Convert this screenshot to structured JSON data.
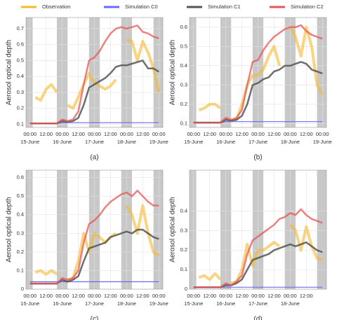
{
  "chart_data": [
    {
      "type": "line",
      "label": "(a)",
      "ylabel": "Aerosol optical depth",
      "x": [
        0,
        4,
        8,
        12,
        16,
        20,
        24,
        28,
        32,
        36,
        40,
        44,
        48,
        52,
        56,
        60,
        64,
        68,
        72,
        76,
        80,
        84,
        88,
        92,
        96
      ],
      "xlim": [
        -3,
        99
      ],
      "ylim": [
        0.08,
        0.77
      ],
      "xticks": [
        {
          "value": 0,
          "label": "00:00"
        },
        {
          "value": 12,
          "label": "12:00"
        },
        {
          "value": 24,
          "label": "00:00"
        },
        {
          "value": 36,
          "label": "12:00"
        },
        {
          "value": 48,
          "label": "00:00"
        },
        {
          "value": 60,
          "label": "12:00"
        },
        {
          "value": 72,
          "label": "00:00"
        },
        {
          "value": 84,
          "label": "12:00"
        },
        {
          "value": 96,
          "label": "00:00"
        }
      ],
      "x_date_labels": [
        {
          "value": 0,
          "label": "15-June"
        },
        {
          "value": 24,
          "label": "16-June"
        },
        {
          "value": 48,
          "label": "17-June"
        },
        {
          "value": 72,
          "label": "18-June"
        },
        {
          "value": 96,
          "label": "19-June"
        }
      ],
      "yticks": [
        0.1,
        0.2,
        0.3,
        0.4,
        0.5,
        0.6,
        0.7
      ],
      "shaded": [
        [
          -3,
          2
        ],
        [
          20,
          28
        ],
        [
          44,
          52
        ],
        [
          68,
          76
        ],
        [
          92,
          99
        ]
      ],
      "grid": true,
      "series": [
        {
          "name": "Observation",
          "color": "#f5b830",
          "values": [
            null,
            0.27,
            0.25,
            0.32,
            0.35,
            0.3,
            null,
            0.22,
            0.2,
            0.27,
            0.35,
            0.42,
            0.36,
            0.34,
            0.32,
            0.34,
            0.38,
            null,
            0.63,
            0.62,
            0.5,
            0.62,
            0.55,
            0.45,
            0.3
          ]
        },
        {
          "name": "Simulation C0",
          "color": "#6b6bf5",
          "values": [
            0.105,
            0.105,
            0.105,
            0.105,
            0.105,
            0.105,
            0.11,
            0.11,
            0.11,
            0.11,
            0.11,
            0.11,
            0.11,
            0.11,
            0.11,
            0.11,
            0.11,
            0.11,
            0.11,
            0.11,
            0.11,
            0.11,
            0.11,
            0.11,
            0.11
          ]
        },
        {
          "name": "Simulation C1",
          "color": "#555555",
          "values": [
            0.105,
            0.105,
            0.105,
            0.105,
            0.105,
            0.105,
            0.12,
            0.115,
            0.12,
            0.14,
            0.22,
            0.33,
            0.35,
            0.37,
            0.39,
            0.42,
            0.46,
            0.47,
            0.47,
            0.48,
            0.49,
            0.5,
            0.45,
            0.45,
            0.43
          ]
        },
        {
          "name": "Simulation C2",
          "color": "#e85555",
          "values": [
            0.105,
            0.105,
            0.105,
            0.105,
            0.105,
            0.105,
            0.13,
            0.12,
            0.13,
            0.18,
            0.35,
            0.5,
            0.52,
            0.56,
            0.62,
            0.67,
            0.7,
            0.71,
            0.7,
            0.71,
            0.72,
            0.68,
            0.67,
            0.65,
            0.64
          ]
        }
      ]
    },
    {
      "type": "line",
      "label": "(b)",
      "ylabel": "Aerosol optical depth",
      "x": [
        0,
        4,
        8,
        12,
        16,
        20,
        24,
        28,
        32,
        36,
        40,
        44,
        48,
        52,
        56,
        60,
        64,
        68,
        72,
        76,
        80,
        84,
        88,
        92,
        96
      ],
      "xlim": [
        -3,
        99
      ],
      "ylim": [
        0.08,
        0.65
      ],
      "xticks": [
        {
          "value": 0,
          "label": "00:00"
        },
        {
          "value": 12,
          "label": "12:00"
        },
        {
          "value": 24,
          "label": "00:00"
        },
        {
          "value": 36,
          "label": "12:00"
        },
        {
          "value": 48,
          "label": "00:00"
        },
        {
          "value": 60,
          "label": "12:00"
        },
        {
          "value": 72,
          "label": "00:00"
        },
        {
          "value": 84,
          "label": "12:00"
        },
        {
          "value": 96,
          "label": "00:00"
        }
      ],
      "x_date_labels": [
        {
          "value": 0,
          "label": "15-June"
        },
        {
          "value": 24,
          "label": "16-June"
        },
        {
          "value": 48,
          "label": "17-June"
        },
        {
          "value": 72,
          "label": "18-June"
        },
        {
          "value": 96,
          "label": "19-June"
        }
      ],
      "yticks": [
        0.1,
        0.2,
        0.3,
        0.4,
        0.5,
        0.6
      ],
      "shaded": [
        [
          -3,
          2
        ],
        [
          20,
          28
        ],
        [
          44,
          52
        ],
        [
          68,
          76
        ],
        [
          92,
          99
        ]
      ],
      "grid": true,
      "series": [
        {
          "color": "#f5b830",
          "values": [
            null,
            0.17,
            0.18,
            0.2,
            0.2,
            0.18,
            null,
            0.12,
            0.12,
            0.2,
            0.3,
            0.35,
            0.35,
            0.38,
            0.45,
            0.5,
            0.4,
            null,
            0.6,
            0.55,
            0.45,
            0.6,
            0.5,
            0.3,
            0.25
          ]
        },
        {
          "color": "#6b6bf5",
          "values": [
            0.105,
            0.105,
            0.105,
            0.105,
            0.105,
            0.105,
            0.11,
            0.11,
            0.11,
            0.11,
            0.11,
            0.11,
            0.11,
            0.11,
            0.11,
            0.11,
            0.11,
            0.11,
            0.11,
            0.11,
            0.11,
            0.11,
            0.11,
            0.11,
            0.11
          ]
        },
        {
          "color": "#555555",
          "values": [
            0.105,
            0.105,
            0.105,
            0.105,
            0.105,
            0.105,
            0.12,
            0.115,
            0.12,
            0.14,
            0.2,
            0.3,
            0.31,
            0.33,
            0.34,
            0.37,
            0.38,
            0.4,
            0.4,
            0.41,
            0.42,
            0.41,
            0.38,
            0.37,
            0.36
          ]
        },
        {
          "color": "#e85555",
          "values": [
            0.105,
            0.105,
            0.105,
            0.105,
            0.105,
            0.105,
            0.13,
            0.12,
            0.13,
            0.17,
            0.3,
            0.42,
            0.43,
            0.48,
            0.52,
            0.55,
            0.57,
            0.59,
            0.6,
            0.6,
            0.61,
            0.58,
            0.56,
            0.55,
            0.54
          ]
        }
      ]
    },
    {
      "type": "line",
      "label": "(c)",
      "ylabel": "Aerosol optical depth",
      "x": [
        0,
        4,
        8,
        12,
        16,
        20,
        24,
        28,
        32,
        36,
        40,
        44,
        48,
        52,
        56,
        60,
        64,
        68,
        72,
        76,
        80,
        84,
        88,
        92,
        96
      ],
      "xlim": [
        -3,
        99
      ],
      "ylim": [
        0,
        0.64
      ],
      "xticks": [
        {
          "value": 0,
          "label": "00:00"
        },
        {
          "value": 12,
          "label": "12:00"
        },
        {
          "value": 24,
          "label": "00:00"
        },
        {
          "value": 36,
          "label": "12:00"
        },
        {
          "value": 48,
          "label": "00:00"
        },
        {
          "value": 60,
          "label": "12:00"
        },
        {
          "value": 72,
          "label": "00:00"
        },
        {
          "value": 84,
          "label": "12:00"
        },
        {
          "value": 96,
          "label": "00:00"
        }
      ],
      "x_date_labels": [
        {
          "value": 0,
          "label": "15-June"
        },
        {
          "value": 24,
          "label": "16-June"
        },
        {
          "value": 48,
          "label": "17-June"
        },
        {
          "value": 72,
          "label": "18-June"
        },
        {
          "value": 96,
          "label": "19-June"
        }
      ],
      "yticks": [
        0,
        0.1,
        0.2,
        0.3,
        0.4,
        0.5,
        0.6
      ],
      "shaded": [
        [
          -3,
          2
        ],
        [
          20,
          28
        ],
        [
          44,
          52
        ],
        [
          68,
          76
        ],
        [
          92,
          99
        ]
      ],
      "grid": true,
      "series": [
        {
          "color": "#f5b830",
          "values": [
            null,
            0.09,
            0.1,
            0.08,
            0.1,
            0.08,
            null,
            0.05,
            0.06,
            0.15,
            0.3,
            0.2,
            0.3,
            0.28,
            0.25,
            0.28,
            0.3,
            null,
            0.45,
            0.4,
            0.3,
            0.45,
            0.3,
            0.2,
            0.18
          ]
        },
        {
          "color": "#6b6bf5",
          "values": [
            0.04,
            0.04,
            0.04,
            0.04,
            0.04,
            0.04,
            0.04,
            0.04,
            0.04,
            0.04,
            0.04,
            0.04,
            0.04,
            0.04,
            0.04,
            0.04,
            0.04,
            0.04,
            0.04,
            0.04,
            0.04,
            0.04,
            0.04,
            0.04,
            0.04
          ]
        },
        {
          "color": "#555555",
          "values": [
            0.03,
            0.03,
            0.03,
            0.03,
            0.03,
            0.03,
            0.05,
            0.04,
            0.05,
            0.07,
            0.15,
            0.22,
            0.23,
            0.24,
            0.25,
            0.28,
            0.29,
            0.3,
            0.31,
            0.3,
            0.32,
            0.32,
            0.3,
            0.28,
            0.27
          ]
        },
        {
          "color": "#e85555",
          "values": [
            0.03,
            0.03,
            0.03,
            0.03,
            0.03,
            0.03,
            0.06,
            0.05,
            0.06,
            0.1,
            0.25,
            0.35,
            0.37,
            0.4,
            0.44,
            0.47,
            0.49,
            0.51,
            0.52,
            0.5,
            0.53,
            0.5,
            0.47,
            0.45,
            0.45
          ]
        }
      ]
    },
    {
      "type": "line",
      "label": "(d)",
      "ylabel": "Aerosol optical depth",
      "x": [
        0,
        4,
        8,
        12,
        16,
        20,
        24,
        28,
        32,
        36,
        40,
        44,
        48,
        52,
        56,
        60,
        64,
        68,
        72,
        76,
        80,
        84,
        88,
        92,
        96
      ],
      "xlim": [
        -3,
        99
      ],
      "ylim": [
        0,
        0.61
      ],
      "xticks": [
        {
          "value": 0,
          "label": "00:00"
        },
        {
          "value": 12,
          "label": "12:00"
        },
        {
          "value": 24,
          "label": "00:00"
        },
        {
          "value": 36,
          "label": "12:00"
        },
        {
          "value": 48,
          "label": "00:00"
        },
        {
          "value": 60,
          "label": "12:00"
        },
        {
          "value": 72,
          "label": "00:00"
        },
        {
          "value": 84,
          "label": "12:00"
        }
      ],
      "x_date_labels": [
        {
          "value": 0,
          "label": "15-June"
        },
        {
          "value": 24,
          "label": "16-June"
        },
        {
          "value": 48,
          "label": "17-June"
        },
        {
          "value": 72,
          "label": "18-June"
        }
      ],
      "yticks": [
        0,
        0.1,
        0.2,
        0.3,
        0.4
      ],
      "shaded": [
        [
          -3,
          2
        ],
        [
          20,
          28
        ],
        [
          44,
          52
        ],
        [
          68,
          76
        ],
        [
          92,
          99
        ]
      ],
      "grid": true,
      "series": [
        {
          "color": "#f5b830",
          "values": [
            null,
            0.06,
            0.07,
            0.05,
            0.08,
            0.05,
            null,
            0.03,
            0.04,
            0.1,
            0.23,
            0.12,
            0.2,
            0.2,
            0.22,
            0.24,
            0.22,
            null,
            0.33,
            0.3,
            0.2,
            0.32,
            0.22,
            0.16,
            0.15
          ]
        },
        {
          "color": "#6b6bf5",
          "values": [
            0.01,
            0.01,
            0.01,
            0.01,
            0.01,
            0.01,
            0.01,
            0.01,
            0.01,
            0.01,
            0.01,
            0.01,
            0.01,
            0.01,
            0.01,
            0.01,
            0.01,
            0.01,
            0.01,
            0.01,
            0.01,
            0.01,
            0.01,
            0.01,
            0.01
          ]
        },
        {
          "color": "#555555",
          "values": [
            0.01,
            0.01,
            0.01,
            0.01,
            0.01,
            0.01,
            0.02,
            0.02,
            0.03,
            0.05,
            0.1,
            0.15,
            0.16,
            0.17,
            0.18,
            0.2,
            0.21,
            0.22,
            0.23,
            0.22,
            0.23,
            0.24,
            0.22,
            0.2,
            0.19
          ]
        },
        {
          "color": "#e85555",
          "values": [
            0.01,
            0.01,
            0.01,
            0.01,
            0.01,
            0.01,
            0.03,
            0.02,
            0.04,
            0.07,
            0.18,
            0.25,
            0.27,
            0.29,
            0.31,
            0.33,
            0.36,
            0.37,
            0.39,
            0.38,
            0.41,
            0.38,
            0.36,
            0.35,
            0.34
          ]
        }
      ]
    }
  ]
}
